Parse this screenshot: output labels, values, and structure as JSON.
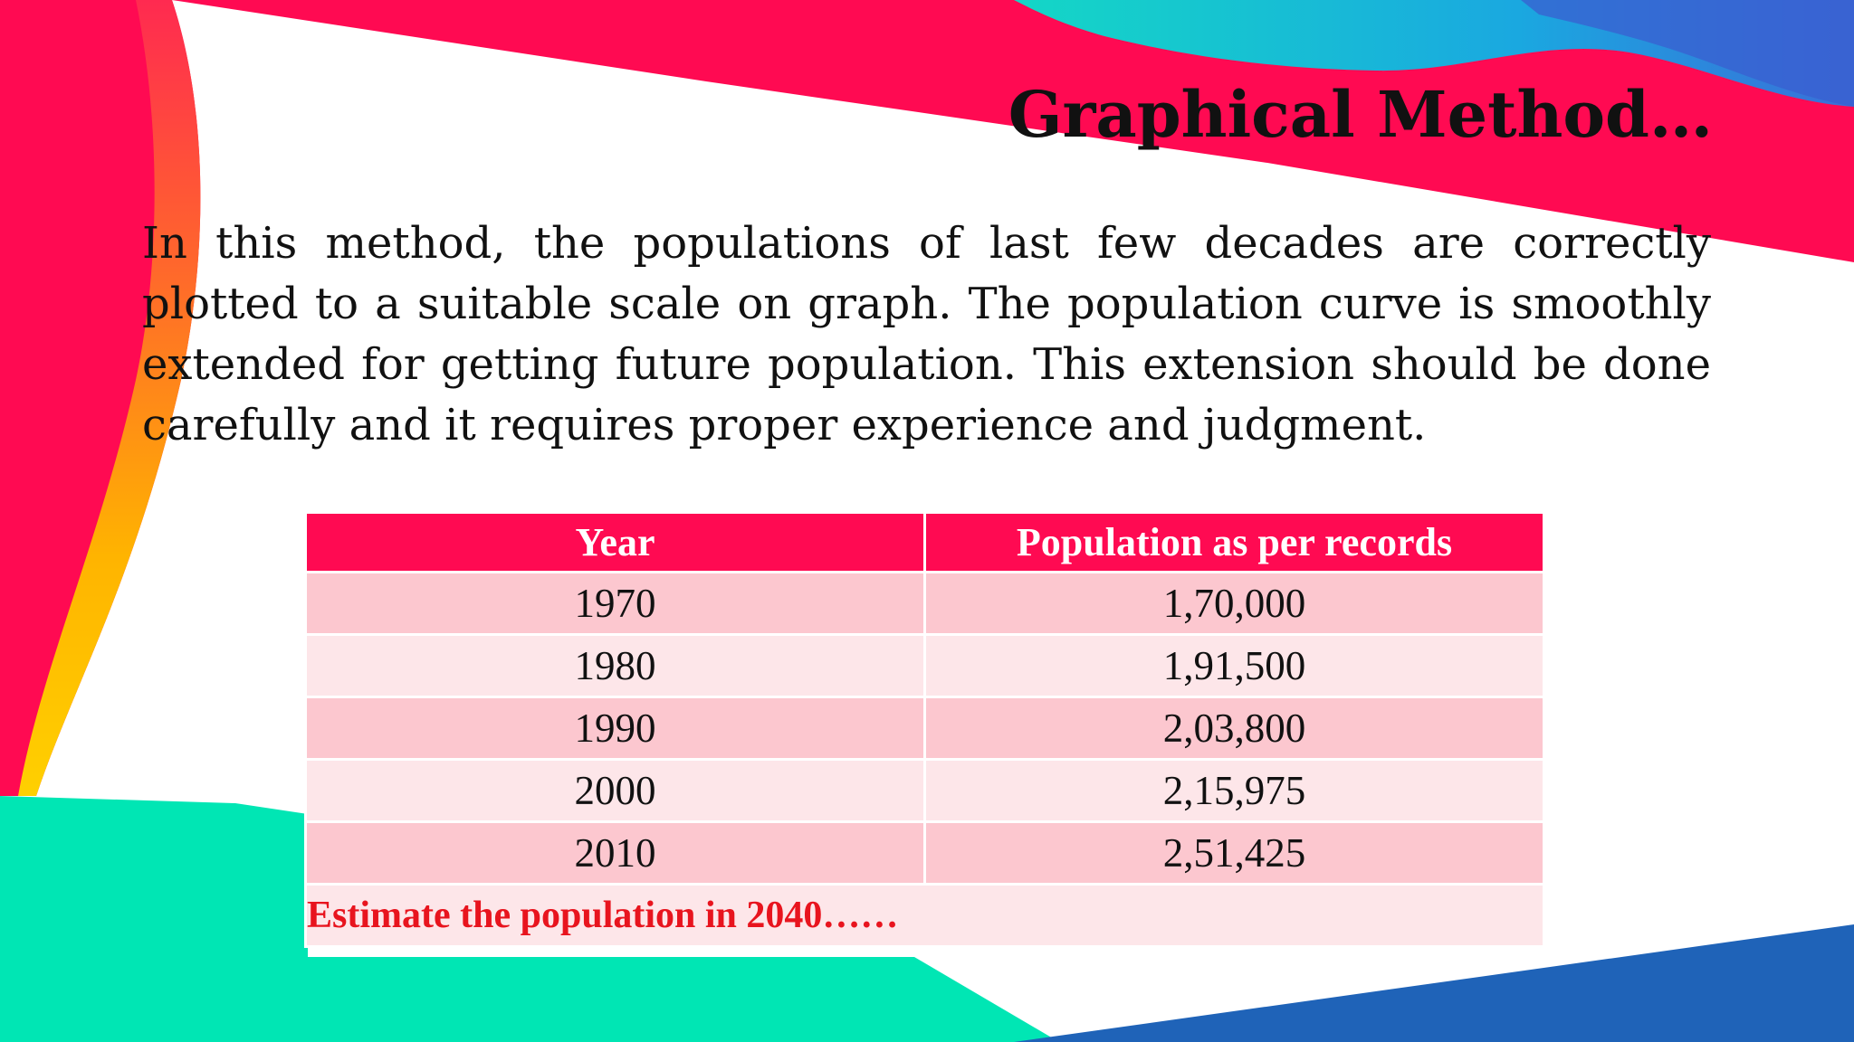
{
  "slide": {
    "title": "Graphical Method…",
    "body": "In this method, the populations of last few decades are correctly plotted to a suitable scale on graph. The population curve is smoothly extended for getting future population. This extension should be done carefully and it requires proper experience and judgment."
  },
  "table": {
    "headers": [
      "Year",
      "Population as per records"
    ],
    "rows": [
      {
        "year": "1970",
        "population": "1,70,000"
      },
      {
        "year": "1980",
        "population": "1,91,500"
      },
      {
        "year": "1990",
        "population": "2,03,800"
      },
      {
        "year": "2000",
        "population": "2,15,975"
      },
      {
        "year": "2010",
        "population": "2,51,425"
      }
    ],
    "note": "Estimate the population in 2040……"
  },
  "colors": {
    "header_bg": "#ff0a52",
    "row_odd": "#fcc7cf",
    "row_even": "#fde6e9",
    "note_text": "#e8141e",
    "accent_pink": "#ff0a52",
    "accent_teal": "#00e6b4",
    "accent_blue": "#1f63b8"
  }
}
